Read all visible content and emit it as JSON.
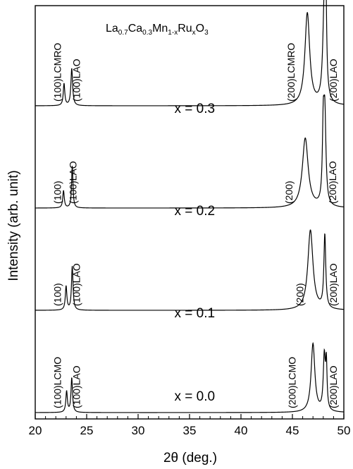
{
  "chart_data": {
    "type": "line",
    "title": {
      "parts": [
        {
          "text": "La",
          "sub": false
        },
        {
          "text": "0.7",
          "sub": true
        },
        {
          "text": "Ca",
          "sub": false
        },
        {
          "text": "0.3",
          "sub": true
        },
        {
          "text": "Mn",
          "sub": false
        },
        {
          "text": "1-x",
          "sub": true
        },
        {
          "text": "Ru",
          "sub": false
        },
        {
          "text": "x",
          "sub": true
        },
        {
          "text": "O",
          "sub": false
        },
        {
          "text": "3",
          "sub": true
        }
      ]
    },
    "xlabel": "2θ (deg.)",
    "ylabel": "Intensity (arb. unit)",
    "xlim": [
      20,
      50
    ],
    "x_ticks": [
      20,
      25,
      30,
      35,
      40,
      45,
      50
    ],
    "x_tick_labels": [
      "20",
      "25",
      "30",
      "35",
      "40",
      "45",
      "50"
    ],
    "y_ticks": "none",
    "grid": false,
    "panels": [
      {
        "label": "",
        "peaks": [
          {
            "x": 22.8,
            "height": 0.22,
            "width": 0.09
          },
          {
            "x": 23.55,
            "height": 0.37,
            "width": 0.1
          },
          {
            "x": 46.45,
            "height": 0.92,
            "width": 0.28
          },
          {
            "x": 48.1,
            "height": 0.98,
            "width": 0.17
          },
          {
            "x": 48.25,
            "height": 0.85,
            "width": 0.08
          }
        ],
        "annotations": [
          {
            "text": "(100)LCMRO",
            "x": 22.5
          },
          {
            "text": "(100)LAO",
            "x": 24.35
          },
          {
            "text": "(200)LCMRO",
            "x": 45.2
          },
          {
            "text": "(200)LAO",
            "x": 49.3
          }
        ]
      },
      {
        "label": "x = 0.3",
        "peaks": [
          {
            "x": 22.75,
            "height": 0.18,
            "width": 0.09
          },
          {
            "x": 23.6,
            "height": 0.44,
            "width": 0.08
          },
          {
            "x": 46.25,
            "height": 0.73,
            "width": 0.34
          },
          {
            "x": 48.15,
            "height": 0.92,
            "width": 0.13
          },
          {
            "x": 48.0,
            "height": 0.72,
            "width": 0.1
          }
        ],
        "annotations": [
          {
            "text": "(100)",
            "x": 22.5
          },
          {
            "text": "(100)LAO",
            "x": 24.0
          },
          {
            "text": "(200)",
            "x": 45.0
          },
          {
            "text": "(200)LAO",
            "x": 49.25
          }
        ]
      },
      {
        "label": "x = 0.2",
        "peaks": [
          {
            "x": 23.0,
            "height": 0.25,
            "width": 0.09
          },
          {
            "x": 23.6,
            "height": 0.46,
            "width": 0.09
          },
          {
            "x": 46.75,
            "height": 0.84,
            "width": 0.3
          },
          {
            "x": 48.15,
            "height": 0.77,
            "width": 0.11
          }
        ],
        "annotations": [
          {
            "text": "(100)",
            "x": 22.5
          },
          {
            "text": "(100)LAO",
            "x": 24.35
          },
          {
            "text": "(200)",
            "x": 46.05
          },
          {
            "text": "(200)LAO",
            "x": 49.3
          }
        ]
      },
      {
        "label": "x = 0.1",
        "peaks": [
          {
            "x": 23.05,
            "height": 0.22,
            "width": 0.09
          },
          {
            "x": 23.55,
            "height": 0.36,
            "width": 0.09
          },
          {
            "x": 47.0,
            "height": 0.72,
            "width": 0.22
          },
          {
            "x": 48.1,
            "height": 0.57,
            "width": 0.12
          },
          {
            "x": 48.3,
            "height": 0.46,
            "width": 0.08
          }
        ],
        "annotations": [
          {
            "text": "(100)LCMO",
            "x": 22.5
          },
          {
            "text": "(100)LAO",
            "x": 24.35
          },
          {
            "text": "(200)LCMO",
            "x": 45.3
          },
          {
            "text": "(200)LAO",
            "x": 49.3
          }
        ]
      }
    ],
    "panel_labels_bottom": [
      "x = 0.0"
    ]
  }
}
